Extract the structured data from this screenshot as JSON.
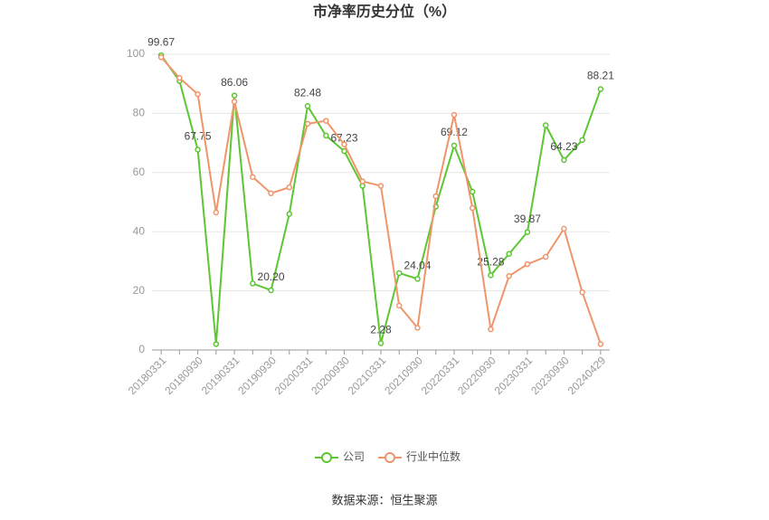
{
  "chart_data": {
    "type": "line",
    "title": "市净率历史分位（%）",
    "source": "数据来源：恒生聚源",
    "categories": [
      "20180331",
      null,
      "20180930",
      null,
      "20190331",
      null,
      "20190930",
      null,
      "20200331",
      null,
      "20200930",
      null,
      "20210331",
      null,
      "20210930",
      null,
      "20220331",
      null,
      "20220930",
      null,
      "20230331",
      null,
      "20230930",
      null,
      "20240429"
    ],
    "series": [
      {
        "name": "公司",
        "color": "#5cc633",
        "values": [
          99.67,
          91,
          67.75,
          2,
          86.06,
          22.5,
          20.2,
          46,
          82.48,
          72.5,
          67.23,
          55.5,
          2.28,
          26,
          24.04,
          48.5,
          69.12,
          53.5,
          25.28,
          32.5,
          39.87,
          76,
          64.23,
          71,
          88.21
        ],
        "value_labels": [
          "99.67",
          null,
          "67.75",
          null,
          "86.06",
          null,
          "20.20",
          null,
          "82.48",
          null,
          "67.23",
          null,
          "2.28",
          null,
          "24.04",
          null,
          "69.12",
          null,
          "25.28",
          null,
          "39.87",
          null,
          "64.23",
          null,
          "88.21"
        ]
      },
      {
        "name": "行业中位数",
        "color": "#f0956a",
        "values": [
          99,
          92,
          86.5,
          46.5,
          84,
          58.5,
          53,
          55,
          76.5,
          77.5,
          69.5,
          57,
          55.5,
          15,
          7.5,
          52,
          79.5,
          48,
          7,
          25,
          29,
          31.5,
          41,
          19.5,
          2
        ]
      }
    ],
    "ylim": [
      0,
      100
    ],
    "yticks": [
      0,
      20,
      40,
      60,
      80,
      100
    ],
    "grid": true,
    "legend": "bottom"
  }
}
